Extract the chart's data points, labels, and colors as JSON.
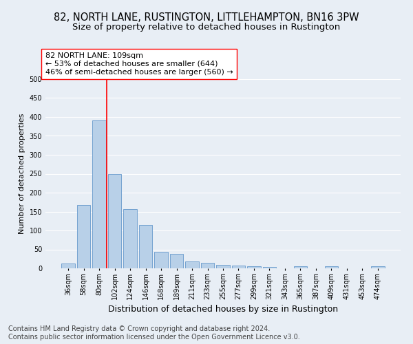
{
  "title": "82, NORTH LANE, RUSTINGTON, LITTLEHAMPTON, BN16 3PW",
  "subtitle": "Size of property relative to detached houses in Rustington",
  "xlabel": "Distribution of detached houses by size in Rustington",
  "ylabel": "Number of detached properties",
  "bar_categories": [
    "36sqm",
    "58sqm",
    "80sqm",
    "102sqm",
    "124sqm",
    "146sqm",
    "168sqm",
    "189sqm",
    "211sqm",
    "233sqm",
    "255sqm",
    "277sqm",
    "299sqm",
    "321sqm",
    "343sqm",
    "365sqm",
    "387sqm",
    "409sqm",
    "431sqm",
    "453sqm",
    "474sqm"
  ],
  "bar_values": [
    13,
    167,
    390,
    250,
    157,
    115,
    43,
    39,
    18,
    15,
    10,
    8,
    6,
    4,
    0,
    5,
    0,
    5,
    0,
    0,
    5
  ],
  "bar_color": "#b8d0e8",
  "bar_edge_color": "#6699cc",
  "vline_x_index": 2.5,
  "vline_color": "red",
  "annotation_text": "82 NORTH LANE: 109sqm\n← 53% of detached houses are smaller (644)\n46% of semi-detached houses are larger (560) →",
  "annotation_box_color": "white",
  "annotation_box_edge_color": "red",
  "ylim": [
    0,
    500
  ],
  "yticks": [
    0,
    50,
    100,
    150,
    200,
    250,
    300,
    350,
    400,
    450,
    500
  ],
  "footer": "Contains HM Land Registry data © Crown copyright and database right 2024.\nContains public sector information licensed under the Open Government Licence v3.0.",
  "bg_color": "#e8eef5",
  "grid_color": "white",
  "title_fontsize": 10.5,
  "subtitle_fontsize": 9.5,
  "annotation_fontsize": 8,
  "footer_fontsize": 7,
  "ylabel_fontsize": 8,
  "xlabel_fontsize": 9,
  "tick_fontsize": 7
}
